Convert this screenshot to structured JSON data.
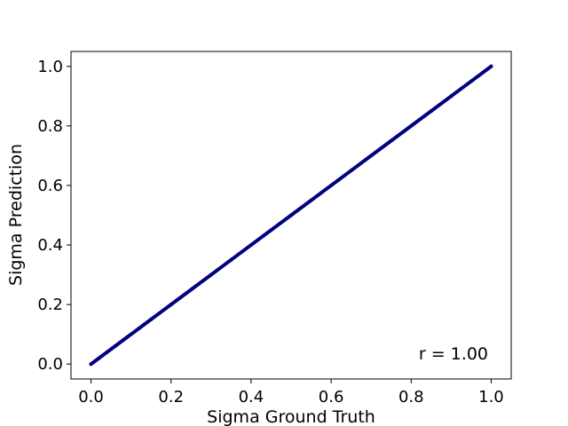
{
  "chart_data": {
    "type": "scatter",
    "title": "",
    "xlabel": "Sigma Ground Truth",
    "ylabel": "Sigma Prediction",
    "xlim": [
      -0.05,
      1.05
    ],
    "ylim": [
      -0.05,
      1.05
    ],
    "xticks": [
      "0.0",
      "0.2",
      "0.4",
      "0.6",
      "0.8",
      "1.0"
    ],
    "yticks": [
      "0.0",
      "0.2",
      "0.4",
      "0.6",
      "0.8",
      "1.0"
    ],
    "grid": false,
    "legend": "none",
    "annotation": "r = 1.00",
    "marker_color": "#000080",
    "series": [
      {
        "x": [
          0.0,
          0.02,
          0.04,
          0.05,
          0.06,
          0.08,
          0.09,
          0.1,
          0.12,
          0.14,
          0.15,
          0.17,
          0.2,
          0.25,
          0.3,
          0.35,
          0.4,
          0.45,
          0.5,
          0.55,
          0.6,
          0.65,
          0.7,
          0.75,
          0.8,
          0.85,
          0.9,
          0.95,
          1.0
        ],
        "y": [
          0.0,
          0.02,
          0.04,
          0.05,
          0.06,
          0.08,
          0.09,
          0.1,
          0.12,
          0.14,
          0.15,
          0.17,
          0.2,
          0.25,
          0.3,
          0.35,
          0.4,
          0.45,
          0.5,
          0.55,
          0.6,
          0.65,
          0.7,
          0.75,
          0.8,
          0.85,
          0.9,
          0.95,
          1.0
        ]
      }
    ]
  }
}
